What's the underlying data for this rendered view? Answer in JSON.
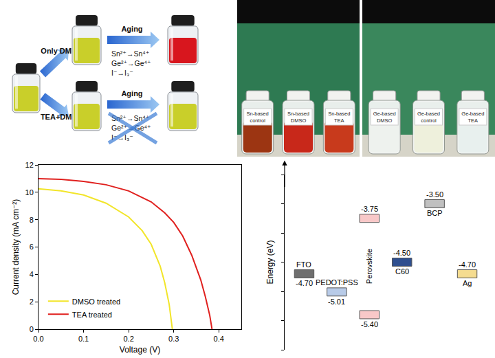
{
  "schematic": {
    "start_color": "#c9cf2a",
    "branches": [
      {
        "solvent": "Only DMF",
        "step": "Aging",
        "reactions": [
          "Sn²⁺→Sn⁴⁺",
          "Ge²⁺→Ge⁴⁺",
          "I⁻→I₃⁻"
        ],
        "blocked": false,
        "middle_color": "#c9cf2a",
        "result_color": "#d8161e"
      },
      {
        "solvent": "TEA+DMF",
        "step": "Aging",
        "reactions": [
          "Sn²⁺→Sn⁴⁺",
          "Ge²⁺→Ge⁴⁺",
          "I⁻→I₃⁻"
        ],
        "blocked": true,
        "middle_color": "#c9cf2a",
        "result_color": "#c9cf2a"
      }
    ]
  },
  "photos": [
    {
      "vials": [
        {
          "label": "Sn-based control",
          "color": "#9c3512"
        },
        {
          "label": "Sn-based DMSO",
          "color": "#c8281a"
        },
        {
          "label": "Sn-based TEA",
          "color": "#c83a1c"
        }
      ]
    },
    {
      "vials": [
        {
          "label": "Ge-based DMSO",
          "color": "#eef2ee"
        },
        {
          "label": "Ge-based control",
          "color": "#eef0dc"
        },
        {
          "label": "Ge-based TEA",
          "color": "#e8f0ee"
        }
      ]
    }
  ],
  "chart_data": {
    "type": "line",
    "x_label": "Voltage (V)",
    "y_label": "Current density (mA cm⁻²)",
    "xlim": [
      0,
      0.45
    ],
    "xticks": [
      {
        "value": 0,
        "label": "0.0"
      },
      0.1,
      0.2,
      0.3,
      0.4
    ],
    "ylim": [
      0,
      12
    ],
    "yticks": [
      0,
      2,
      4,
      6,
      8,
      10,
      12
    ],
    "grid": false,
    "legend": "lower left",
    "series": [
      {
        "name": "DMSO treated",
        "color": "#f2e52a",
        "x": [
          0,
          0.05,
          0.1,
          0.15,
          0.2,
          0.23,
          0.25,
          0.27,
          0.28,
          0.29,
          0.297
        ],
        "values": [
          10.25,
          10.1,
          9.8,
          9.2,
          8.2,
          7.2,
          6.2,
          4.6,
          3.4,
          1.8,
          0
        ]
      },
      {
        "name": "TEA treated",
        "color": "#e0201e",
        "x": [
          0,
          0.05,
          0.1,
          0.15,
          0.2,
          0.25,
          0.28,
          0.3,
          0.32,
          0.34,
          0.36,
          0.37,
          0.38,
          0.385
        ],
        "values": [
          11.0,
          10.95,
          10.8,
          10.55,
          10.1,
          9.3,
          8.5,
          7.8,
          6.8,
          5.4,
          3.6,
          2.4,
          1.0,
          0
        ]
      }
    ]
  },
  "energy_diagram": {
    "y_label": "Energy (eV)",
    "ylim": [
      -6,
      -3
    ],
    "yticks": [
      -6,
      -5.5,
      -5,
      -4.5,
      -4,
      -3.5,
      -3
    ],
    "tick_labels": false,
    "levels": [
      {
        "name": "FTO",
        "values": [
          -4.7
        ],
        "labels": [
          "-4.70"
        ],
        "color": "#6e6e6e"
      },
      {
        "name": "PEDOT:PSS",
        "values": [
          -5.01
        ],
        "labels": [
          "-5.01"
        ],
        "color": "#b8cbe8"
      },
      {
        "name": "Perovskite",
        "values": [
          -3.75,
          -5.4
        ],
        "labels": [
          "-3.75",
          "-5.40"
        ],
        "color": "#f8c8c8"
      },
      {
        "name": "C60",
        "values": [
          -4.5
        ],
        "labels": [
          "-4.50"
        ],
        "color": "#2f4f8f"
      },
      {
        "name": "BCP",
        "values": [
          -3.5
        ],
        "labels": [
          "-3.50"
        ],
        "color": "#c0c0c0"
      },
      {
        "name": "Ag",
        "values": [
          -4.7
        ],
        "labels": [
          "-4.70"
        ],
        "color": "#f5dc90"
      }
    ]
  }
}
